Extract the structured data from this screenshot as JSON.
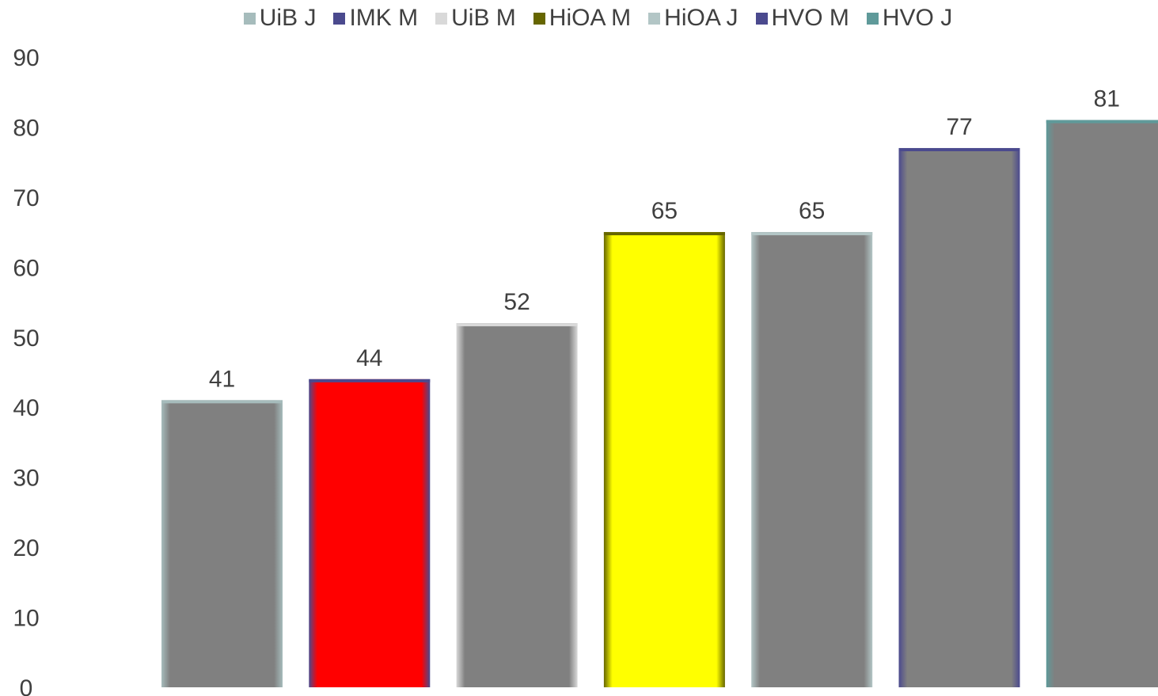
{
  "legend": [
    {
      "label": "UiB J",
      "color": "#a6bcbc"
    },
    {
      "label": "IMK M",
      "color": "#4b4a8e"
    },
    {
      "label": "UiB M",
      "color": "#d9d9d9"
    },
    {
      "label": "HiOA M",
      "color": "#666600"
    },
    {
      "label": "HiOA J",
      "color": "#b3c6c6"
    },
    {
      "label": "HVO M",
      "color": "#4b4a8e"
    },
    {
      "label": "HVO J",
      "color": "#5f9a9a"
    }
  ],
  "chart_data": {
    "type": "bar",
    "title": "",
    "xlabel": "",
    "ylabel": "",
    "ylim": [
      0,
      90
    ],
    "yticks": [
      0,
      10,
      20,
      30,
      40,
      50,
      60,
      70,
      80,
      90
    ],
    "grid": false,
    "legend_position": "top",
    "series": [
      {
        "name": "UiB J",
        "values": [
          41
        ],
        "fill": "#808080",
        "edge": "#a6bcbc"
      },
      {
        "name": "IMK M",
        "values": [
          44
        ],
        "fill": "#ff0000",
        "edge": "#4b4a8e"
      },
      {
        "name": "UiB M",
        "values": [
          52
        ],
        "fill": "#808080",
        "edge": "#d9d9d9"
      },
      {
        "name": "HiOA M",
        "values": [
          65
        ],
        "fill": "#ffff00",
        "edge": "#666600"
      },
      {
        "name": "HiOA J",
        "values": [
          65
        ],
        "fill": "#808080",
        "edge": "#b3c6c6"
      },
      {
        "name": "HVO M",
        "values": [
          77
        ],
        "fill": "#808080",
        "edge": "#4b4a8e"
      },
      {
        "name": "HVO J",
        "values": [
          81
        ],
        "fill": "#808080",
        "edge": "#5f9a9a"
      }
    ]
  }
}
